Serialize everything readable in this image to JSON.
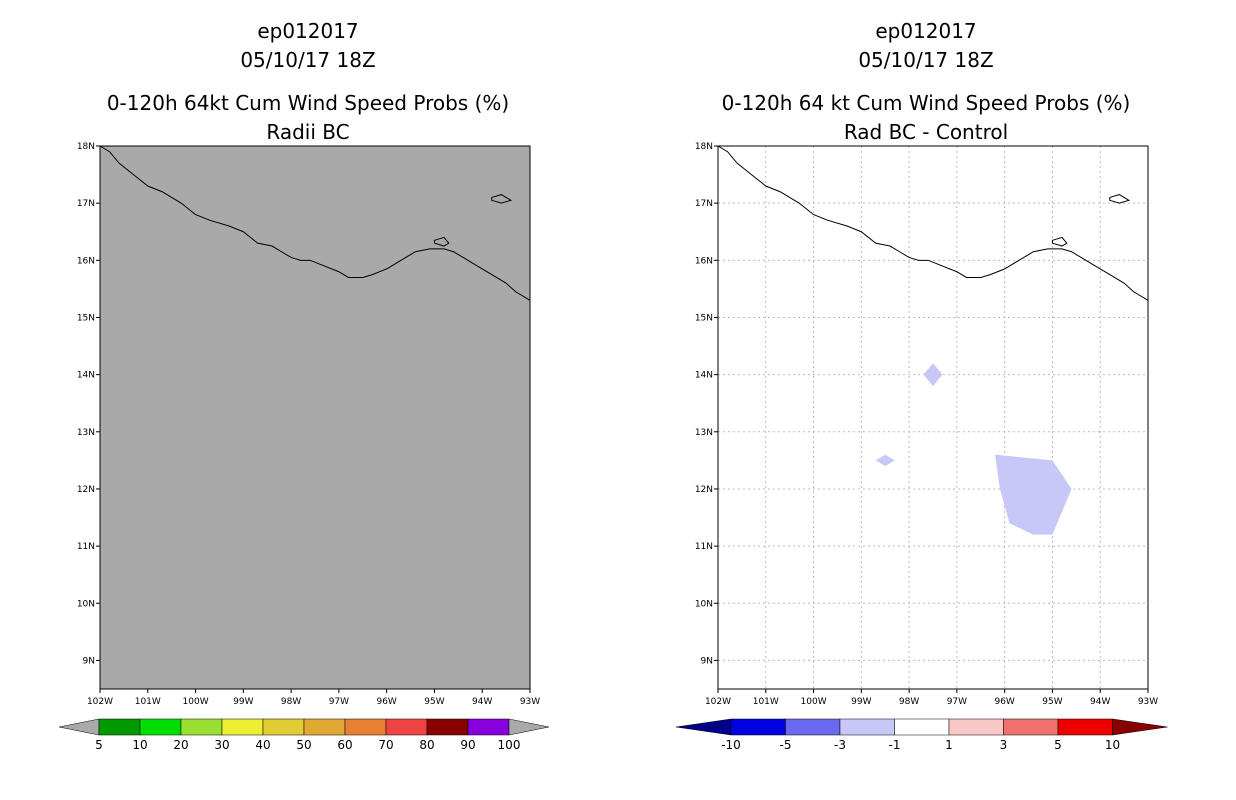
{
  "chart_data": [
    {
      "type": "heatmap",
      "storm_id": "ep012017",
      "datetime": "05/10/17 18Z",
      "title": "0-120h 64kt Cum Wind Speed Probs (%)",
      "subtitle": "Radii BC",
      "lon_range": [
        -102,
        -93
      ],
      "lat_range": [
        8.5,
        18
      ],
      "x_ticks": [
        "102W",
        "101W",
        "100W",
        "99W",
        "98W",
        "97W",
        "96W",
        "95W",
        "94W",
        "93W"
      ],
      "y_ticks": [
        "18N",
        "17N",
        "16N",
        "15N",
        "14N",
        "13N",
        "12N",
        "11N",
        "10N",
        "9N"
      ],
      "grid": false,
      "background_color": "#a9a9a9",
      "field": "uniform undefined (gray) - no probability contours",
      "colorbar": {
        "labels": [
          "5",
          "10",
          "20",
          "30",
          "40",
          "50",
          "60",
          "70",
          "80",
          "90",
          "100"
        ],
        "colors": [
          "#009900",
          "#00dd00",
          "#99e033",
          "#eeee33",
          "#e0cc33",
          "#e0a833",
          "#e88033",
          "#ee4444",
          "#880000",
          "#8800dd"
        ],
        "end_color": "#a9a9a9"
      }
    },
    {
      "type": "heatmap",
      "storm_id": "ep012017",
      "datetime": "05/10/17 18Z",
      "title": "0-120h 64 kt Cum Wind Speed Probs (%)",
      "subtitle": "Rad BC - Control",
      "lon_range": [
        -102,
        -93
      ],
      "lat_range": [
        8.5,
        18
      ],
      "x_ticks": [
        "102W",
        "101W",
        "100W",
        "99W",
        "98W",
        "97W",
        "96W",
        "95W",
        "94W",
        "93W"
      ],
      "y_ticks": [
        "18N",
        "17N",
        "16N",
        "15N",
        "14N",
        "13N",
        "12N",
        "11N",
        "10N",
        "9N"
      ],
      "grid": true,
      "background_color": "#ffffff",
      "regions": [
        {
          "value_range": [
            -3,
            -1
          ],
          "color": "#c8c8f8",
          "lon": [
            -97.7,
            -97.5,
            -97.3,
            -97.5
          ],
          "lat": [
            14.0,
            14.2,
            14.0,
            13.8
          ]
        },
        {
          "value_range": [
            -3,
            -1
          ],
          "color": "#c8c8f8",
          "lon": [
            -98.7,
            -98.5,
            -98.3,
            -98.5
          ],
          "lat": [
            12.5,
            12.6,
            12.5,
            12.4
          ]
        },
        {
          "value_range": [
            -3,
            -1
          ],
          "color": "#c8c8f8",
          "lon": [
            -96.2,
            -95.0,
            -94.6,
            -95.0,
            -95.4,
            -95.9,
            -96.1
          ],
          "lat": [
            12.6,
            12.5,
            12.0,
            11.2,
            11.2,
            11.4,
            12.0
          ]
        }
      ],
      "colorbar": {
        "labels": [
          "-10",
          "-5",
          "-3",
          "-1",
          "1",
          "3",
          "5",
          "10"
        ],
        "colors": [
          "#0000e0",
          "#6a6af0",
          "#c8c8f8",
          "#ffffff",
          "#f8c8c8",
          "#f07070",
          "#ee0000"
        ],
        "end_left_color": "#000088",
        "end_right_color": "#880000"
      }
    }
  ],
  "coast": {
    "mainland": {
      "lon": [
        -102.0,
        -101.8,
        -101.6,
        -101.3,
        -101.0,
        -100.7,
        -100.3,
        -100.0,
        -99.7,
        -99.3,
        -99.0,
        -98.7,
        -98.4,
        -98.2,
        -98.0,
        -97.8,
        -97.6,
        -97.3,
        -97.0,
        -96.8,
        -96.5,
        -96.3,
        -96.0,
        -95.7,
        -95.4,
        -95.1,
        -94.8,
        -94.6,
        -94.4,
        -94.1,
        -93.8,
        -93.5,
        -93.3,
        -93.0
      ],
      "lat": [
        18.0,
        17.9,
        17.7,
        17.5,
        17.3,
        17.2,
        17.0,
        16.8,
        16.7,
        16.6,
        16.5,
        16.3,
        16.25,
        16.15,
        16.05,
        16.0,
        16.0,
        15.9,
        15.8,
        15.7,
        15.7,
        15.75,
        15.85,
        16.0,
        16.15,
        16.2,
        16.2,
        16.15,
        16.05,
        15.9,
        15.75,
        15.6,
        15.45,
        15.3
      ]
    },
    "lagoon_lon": [
      -95.0,
      -94.8,
      -94.7,
      -94.8,
      -95.0
    ],
    "lagoon_lat": [
      16.35,
      16.4,
      16.3,
      16.25,
      16.3
    ],
    "island_lon": [
      -93.8,
      -93.6,
      -93.5,
      -93.4,
      -93.6,
      -93.8
    ],
    "island_lat": [
      17.1,
      17.15,
      17.1,
      17.05,
      17.0,
      17.05
    ]
  }
}
